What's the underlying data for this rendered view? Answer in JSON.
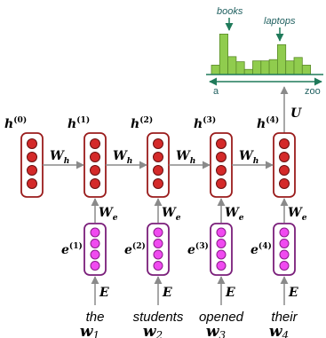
{
  "colors": {
    "hidden_border": "#9a1c1c",
    "hidden_dot": "#d42a2a",
    "embed_border": "#7a1f7a",
    "embed_dot": "#f04af0",
    "arrow": "#8a8a8a",
    "bar_fill": "#90cc4e",
    "bar_stroke": "#5b8a2a",
    "axis": "#1f7a5a",
    "peak_label": "#1f5f5f"
  },
  "hidden_states": [
    {
      "label_base": "h",
      "label_sup": "(0)"
    },
    {
      "label_base": "h",
      "label_sup": "(1)"
    },
    {
      "label_base": "h",
      "label_sup": "(2)"
    },
    {
      "label_base": "h",
      "label_sup": "(3)"
    },
    {
      "label_base": "h",
      "label_sup": "(4)"
    }
  ],
  "recurrent_weight": {
    "base": "W",
    "sub": "h"
  },
  "embedding_weight": {
    "base": "W",
    "sub": "e"
  },
  "output_weight": "U",
  "embedding_matrix": "E",
  "embeddings": [
    {
      "label_base": "e",
      "label_sup": "(1)"
    },
    {
      "label_base": "e",
      "label_sup": "(2)"
    },
    {
      "label_base": "e",
      "label_sup": "(3)"
    },
    {
      "label_base": "e",
      "label_sup": "(4)"
    }
  ],
  "words": [
    {
      "text": "the",
      "var": "w",
      "sub": "1"
    },
    {
      "text": "students",
      "var": "w",
      "sub": "2"
    },
    {
      "text": "opened",
      "var": "w",
      "sub": "3"
    },
    {
      "text": "their",
      "var": "w",
      "sub": "4"
    }
  ],
  "distribution": {
    "axis_start": "a",
    "axis_end": "zoo",
    "peak_labels": [
      "books",
      "laptops"
    ],
    "bars": [
      0.22,
      0.95,
      0.42,
      0.3,
      0.12,
      0.32,
      0.32,
      0.35,
      0.7,
      0.32,
      0.4,
      0.22
    ]
  }
}
